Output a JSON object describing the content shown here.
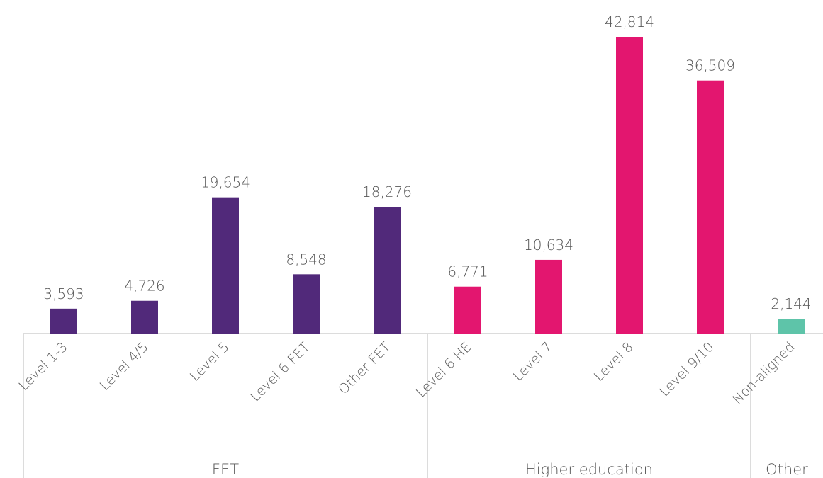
{
  "chart_data": {
    "type": "bar",
    "groups": [
      {
        "name": "FET",
        "color": "#51297a",
        "categories": [
          "Level 1-3",
          "Level 4/5",
          "Level 5",
          "Level 6 FET",
          "Other FET"
        ],
        "values": [
          3593,
          4726,
          19654,
          8548,
          18276
        ],
        "value_labels": [
          "3,593",
          "4,726",
          "19,654",
          "8,548",
          "18,276"
        ]
      },
      {
        "name": "Higher education",
        "color": "#e3166f",
        "categories": [
          "Level 6 HE",
          "Level 7",
          "Level 8",
          "Level 9/10"
        ],
        "values": [
          6771,
          10634,
          42814,
          36509
        ],
        "value_labels": [
          "6,771",
          "10,634",
          "42,814",
          "36,509"
        ]
      },
      {
        "name": "Other",
        "color": "#5ec4a9",
        "categories": [
          "Non-aligned"
        ],
        "values": [
          2144
        ],
        "value_labels": [
          "2,144"
        ]
      }
    ]
  }
}
